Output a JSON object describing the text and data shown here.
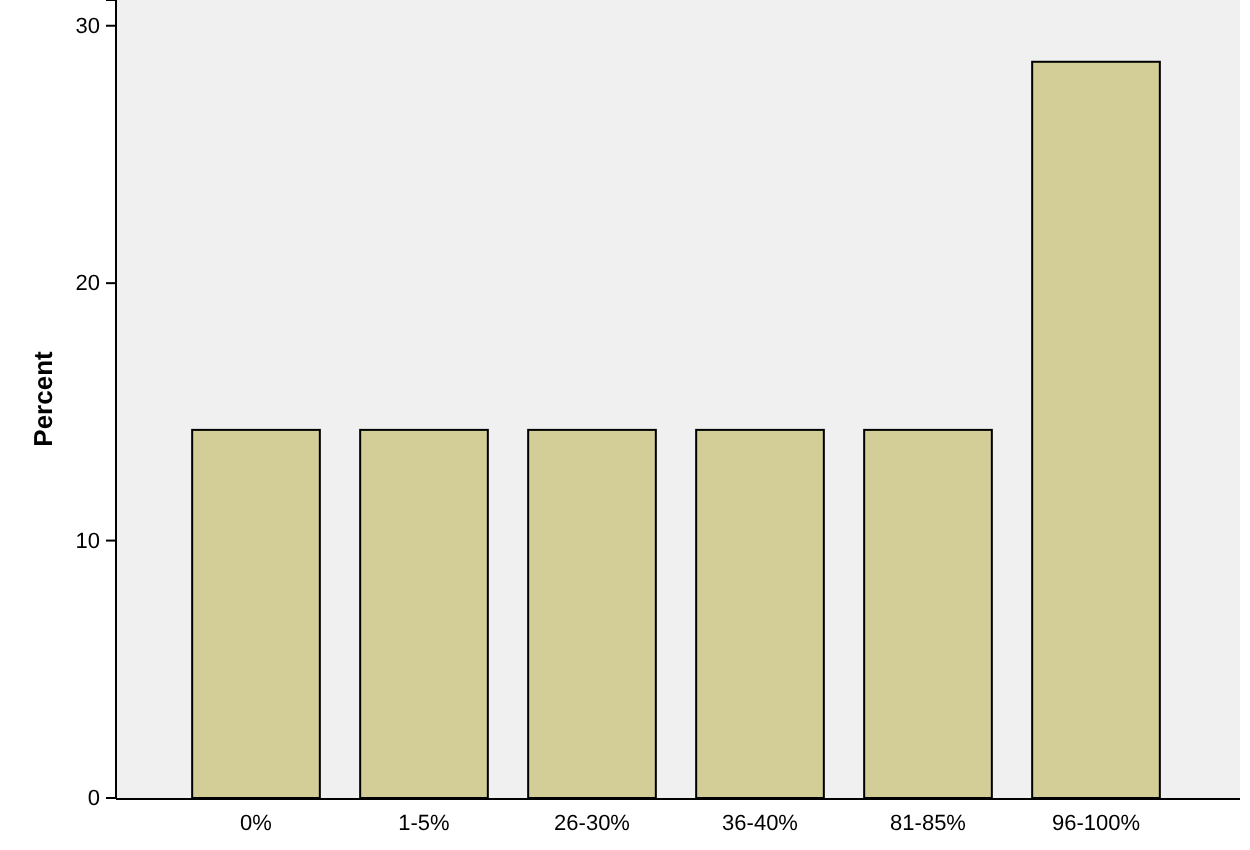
{
  "chart_data": {
    "type": "bar",
    "ylabel": "Percent",
    "categories": [
      "0%",
      "1-5%",
      "26-30%",
      "36-40%",
      "81-85%",
      "96-100%"
    ],
    "values": [
      14.3,
      14.3,
      14.3,
      14.3,
      14.3,
      28.6
    ],
    "color": "#d3ce98",
    "ylim": [
      0,
      31
    ],
    "yticks": [
      0,
      10,
      20,
      30
    ],
    "grid": false
  }
}
